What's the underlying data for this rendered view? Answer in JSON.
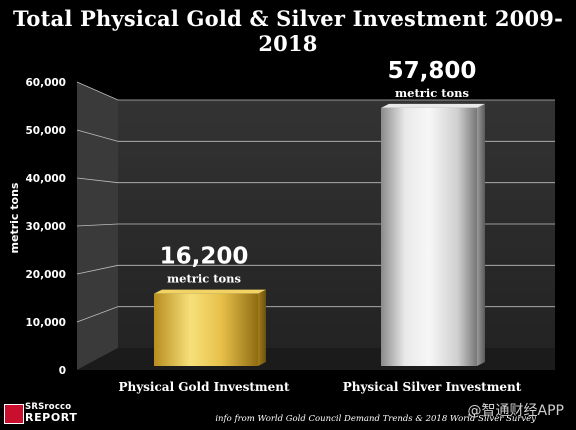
{
  "title": "Total Physical Gold & Silver Investment 2009-2018",
  "chart_data": {
    "type": "bar",
    "categories": [
      "Physical Gold Investment",
      "Physical Silver Investment"
    ],
    "values": [
      16200,
      57800
    ],
    "value_labels": [
      "16,200",
      "57,800"
    ],
    "unit_label": "metric tons",
    "ylabel": "metric tons",
    "ylim": [
      0,
      60000
    ],
    "yticks": [
      "0",
      "10,000",
      "20,000",
      "30,000",
      "40,000",
      "50,000",
      "60,000"
    ],
    "grid": true,
    "legend": "none",
    "colors": {
      "gold_light": "#f7e07a",
      "gold_dark": "#9a7514",
      "silver_light": "#f2f2f2",
      "silver_dark": "#7c7c7c",
      "wall": "#2b2b2b"
    }
  },
  "footer": {
    "logo_top": "SRSrocco",
    "logo_bottom": "REPORT",
    "source": "info from World Gold Council Demand Trends & 2018 World Silver Survey",
    "watermark": "@智通财经APP"
  }
}
